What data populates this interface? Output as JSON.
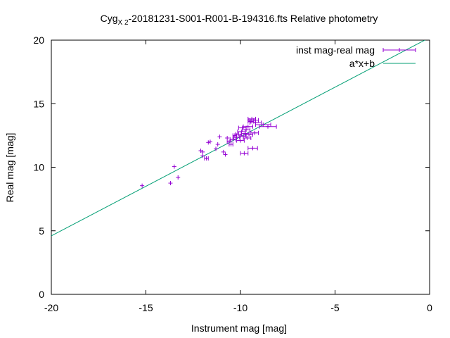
{
  "chart_data": {
    "type": "scatter",
    "title_main": "Cyg",
    "title_sub": "X 2",
    "title_rest": "-20181231-S001-R001-B-194316.fts Relative photometry",
    "xlabel": "Instrument mag [mag]",
    "ylabel": "Real mag [mag]",
    "xlim": [
      -20,
      0
    ],
    "ylim": [
      0,
      20
    ],
    "xticks": [
      -20,
      -15,
      -10,
      -5,
      0
    ],
    "yticks": [
      0,
      5,
      10,
      15,
      20
    ],
    "grid": false,
    "legend_position": "top-right",
    "series": [
      {
        "name": "inst mag-real mag",
        "color": "#9400d3",
        "style": "points-with-x-errorbars",
        "points": [
          {
            "x": -15.2,
            "y": 8.55,
            "xerr": 0
          },
          {
            "x": -13.7,
            "y": 8.75,
            "xerr": 0
          },
          {
            "x": -13.3,
            "y": 9.2,
            "xerr": 0
          },
          {
            "x": -13.5,
            "y": 10.05,
            "xerr": 0
          },
          {
            "x": -11.8,
            "y": 10.7,
            "xerr": 0.1
          },
          {
            "x": -12.0,
            "y": 10.9,
            "xerr": 0
          },
          {
            "x": -12.1,
            "y": 11.3,
            "xerr": 0
          },
          {
            "x": -12.0,
            "y": 11.2,
            "xerr": 0
          },
          {
            "x": -11.7,
            "y": 11.95,
            "xerr": 0
          },
          {
            "x": -11.6,
            "y": 12.0,
            "xerr": 0
          },
          {
            "x": -11.3,
            "y": 11.45,
            "xerr": 0
          },
          {
            "x": -11.2,
            "y": 11.8,
            "xerr": 0
          },
          {
            "x": -11.1,
            "y": 12.4,
            "xerr": 0
          },
          {
            "x": -10.9,
            "y": 11.2,
            "xerr": 0
          },
          {
            "x": -10.8,
            "y": 11.0,
            "xerr": 0
          },
          {
            "x": -10.7,
            "y": 12.3,
            "xerr": 0
          },
          {
            "x": -10.6,
            "y": 12.0,
            "xerr": 0.1
          },
          {
            "x": -10.5,
            "y": 11.8,
            "xerr": 0.1
          },
          {
            "x": -10.4,
            "y": 12.2,
            "xerr": 0.15
          },
          {
            "x": -10.3,
            "y": 12.5,
            "xerr": 0.1
          },
          {
            "x": -10.2,
            "y": 12.35,
            "xerr": 0.15
          },
          {
            "x": -10.1,
            "y": 12.6,
            "xerr": 0.15
          },
          {
            "x": -10.0,
            "y": 12.1,
            "xerr": 0.2
          },
          {
            "x": -9.95,
            "y": 12.8,
            "xerr": 0.2
          },
          {
            "x": -9.9,
            "y": 13.1,
            "xerr": 0.2
          },
          {
            "x": -9.85,
            "y": 12.45,
            "xerr": 0.15
          },
          {
            "x": -9.8,
            "y": 11.1,
            "xerr": 0.2
          },
          {
            "x": -9.75,
            "y": 12.65,
            "xerr": 0.2
          },
          {
            "x": -9.7,
            "y": 12.95,
            "xerr": 0.2
          },
          {
            "x": -9.65,
            "y": 12.3,
            "xerr": 0.2
          },
          {
            "x": -9.6,
            "y": 13.2,
            "xerr": 0.25
          },
          {
            "x": -9.55,
            "y": 12.55,
            "xerr": 0.2
          },
          {
            "x": -9.45,
            "y": 13.6,
            "xerr": 0.15
          },
          {
            "x": -9.4,
            "y": 13.8,
            "xerr": 0.2
          },
          {
            "x": -9.35,
            "y": 11.5,
            "xerr": 0.25
          },
          {
            "x": -9.3,
            "y": 13.7,
            "xerr": 0.25
          },
          {
            "x": -9.25,
            "y": 12.7,
            "xerr": 0.2
          },
          {
            "x": -9.2,
            "y": 13.5,
            "xerr": 0.3
          },
          {
            "x": -8.8,
            "y": 13.35,
            "xerr": 0.4
          },
          {
            "x": -8.55,
            "y": 13.2,
            "xerr": 0.45
          }
        ]
      },
      {
        "name": "a*x+b",
        "color": "#009e73",
        "style": "line",
        "slope": 0.78,
        "intercept": 20.2
      }
    ]
  }
}
